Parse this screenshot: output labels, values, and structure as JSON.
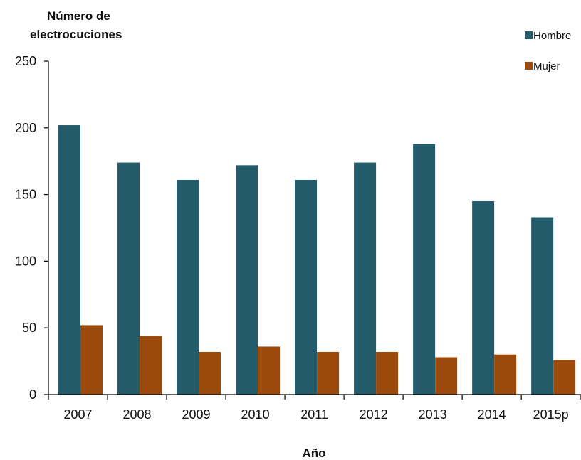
{
  "chart_data": {
    "type": "bar",
    "ylabel_lines": [
      "Número de",
      "electrocuciones"
    ],
    "xlabel": "Año",
    "categories": [
      "2007",
      "2008",
      "2009",
      "2010",
      "2011",
      "2012",
      "2013",
      "2014",
      "2015p"
    ],
    "series": [
      {
        "name": "Hombre",
        "color": "#245b6b",
        "values": [
          202,
          174,
          161,
          172,
          161,
          174,
          188,
          145,
          133
        ]
      },
      {
        "name": "Mujer",
        "color": "#9c4a0c",
        "values": [
          52,
          44,
          32,
          36,
          32,
          32,
          28,
          30,
          26
        ]
      }
    ],
    "ylim": [
      0,
      250
    ],
    "yticks": [
      0,
      50,
      100,
      150,
      200,
      250
    ],
    "grid": false,
    "legend_position": "top-right"
  }
}
